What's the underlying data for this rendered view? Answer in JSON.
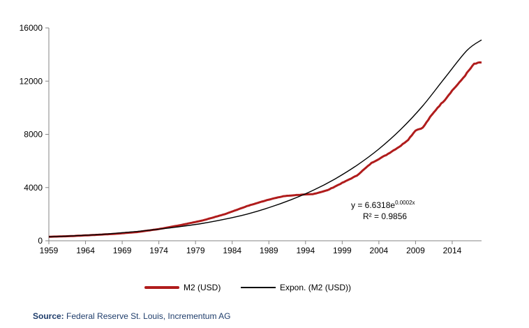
{
  "chart_data": {
    "type": "line",
    "title": "",
    "xlabel": "",
    "ylabel": "",
    "xlim": [
      1959,
      2018
    ],
    "ylim": [
      0,
      16000
    ],
    "x_ticks": [
      "1959",
      "1964",
      "1969",
      "1974",
      "1979",
      "1984",
      "1989",
      "1994",
      "1999",
      "2004",
      "2009",
      "2014"
    ],
    "y_ticks": [
      "0",
      "4000",
      "8000",
      "12000",
      "16000"
    ],
    "grid": false,
    "legend_position": "bottom",
    "series": [
      {
        "name": "M2 (USD)",
        "color": "#b01c1c",
        "x": [
          1959,
          1962,
          1965,
          1968,
          1971,
          1974,
          1977,
          1980,
          1983,
          1986,
          1989,
          1991,
          1993,
          1995,
          1997,
          1999,
          2001,
          2003,
          2005,
          2007,
          2008,
          2009,
          2010,
          2011,
          2012,
          2013,
          2014,
          2015,
          2016,
          2017,
          2018
        ],
        "y": [
          300,
          350,
          430,
          520,
          650,
          880,
          1180,
          1530,
          2000,
          2600,
          3100,
          3350,
          3450,
          3500,
          3800,
          4350,
          4900,
          5850,
          6450,
          7150,
          7600,
          8300,
          8500,
          9300,
          10000,
          10600,
          11300,
          11900,
          12600,
          13300,
          13400
        ]
      },
      {
        "name": "Expon. (M2 (USD))",
        "color": "#000000",
        "type": "exponential-trend",
        "x": [
          1959,
          1962,
          1965,
          1968,
          1971,
          1974,
          1977,
          1980,
          1983,
          1986,
          1989,
          1992,
          1995,
          1998,
          2001,
          2004,
          2007,
          2010,
          2013,
          2016,
          2018
        ],
        "y": [
          300,
          360,
          440,
          560,
          700,
          870,
          1070,
          1310,
          1620,
          2000,
          2490,
          3080,
          3780,
          4640,
          5670,
          6900,
          8380,
          10150,
          12250,
          14300,
          15100
        ]
      }
    ],
    "annotations": {
      "equation_main": "y = 6.6318e",
      "equation_exp": "0.0002x",
      "r_squared": "R² = 0.9856"
    }
  },
  "source": {
    "label": "Source:",
    "text": "Federal Reserve St. Louis, Incrementum AG"
  }
}
